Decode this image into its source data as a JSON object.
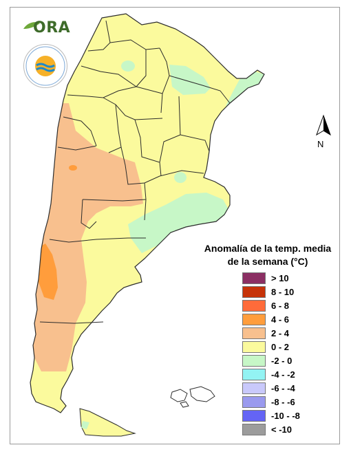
{
  "logos": {
    "ora": {
      "text": "ORA"
    },
    "smn": {
      "ring_text": "SERVICIO METEOROLÓGICO NACIONAL",
      "country": "ARGENTINA"
    }
  },
  "north_arrow": {
    "label": "N"
  },
  "legend": {
    "title_line1": "Anomalía de la temp. media",
    "title_line2": "de la semana (°C)",
    "items": [
      {
        "label": "> 10",
        "color": "#8b2f63"
      },
      {
        "label": "8 - 10",
        "color": "#c63309"
      },
      {
        "label": "6 - 8",
        "color": "#ff6b3a"
      },
      {
        "label": "4 - 6",
        "color": "#ff9d3c"
      },
      {
        "label": "2 - 4",
        "color": "#f8c08e"
      },
      {
        "label": "0 - 2",
        "color": "#fbfa9d"
      },
      {
        "label": "-2 - 0",
        "color": "#c7f7c7"
      },
      {
        "label": "-4 - -2",
        "color": "#93f3f3"
      },
      {
        "label": "-6 - -4",
        "color": "#c9c9fb"
      },
      {
        "label": "-8 - -6",
        "color": "#9a9aee"
      },
      {
        "label": "-10 - -8",
        "color": "#6464f5"
      },
      {
        "label": "< -10",
        "color": "#9c9c9c"
      }
    ]
  },
  "map_colors": {
    "light_yellow": "#fbfa9d",
    "light_orange": "#f8c08e",
    "orange": "#ff9d3c",
    "light_green": "#c7f7c7",
    "outline": "#2b2b2b"
  }
}
